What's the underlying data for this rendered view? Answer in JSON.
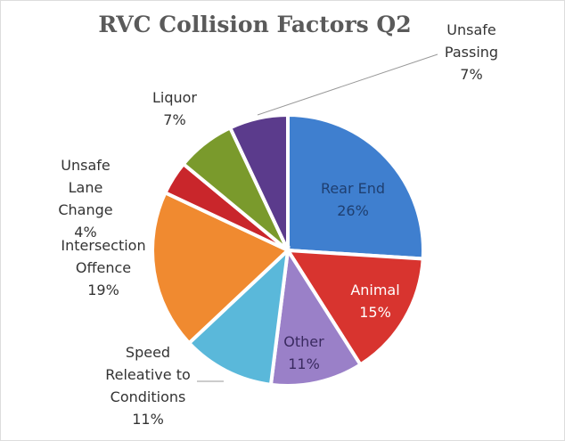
{
  "chart_data": {
    "type": "pie",
    "title": "RVC Collision Factors Q2",
    "categories": [
      "Rear End",
      "Animal",
      "Other",
      "Speed Releative to Conditions",
      "Intersection Offence",
      "Unsafe Lane Change",
      "Liquor",
      "Unsafe Passing"
    ],
    "values": [
      26,
      15,
      11,
      11,
      19,
      4,
      7,
      7
    ],
    "value_labels": [
      "26%",
      "15%",
      "11%",
      "11%",
      "19%",
      "4%",
      "7%",
      "7%"
    ],
    "colors": [
      "#3f7fcf",
      "#d8342f",
      "#9a80c8",
      "#5ab8da",
      "#f08a30",
      "#c9262b",
      "#7a9a2c",
      "#5b3b8c"
    ]
  }
}
